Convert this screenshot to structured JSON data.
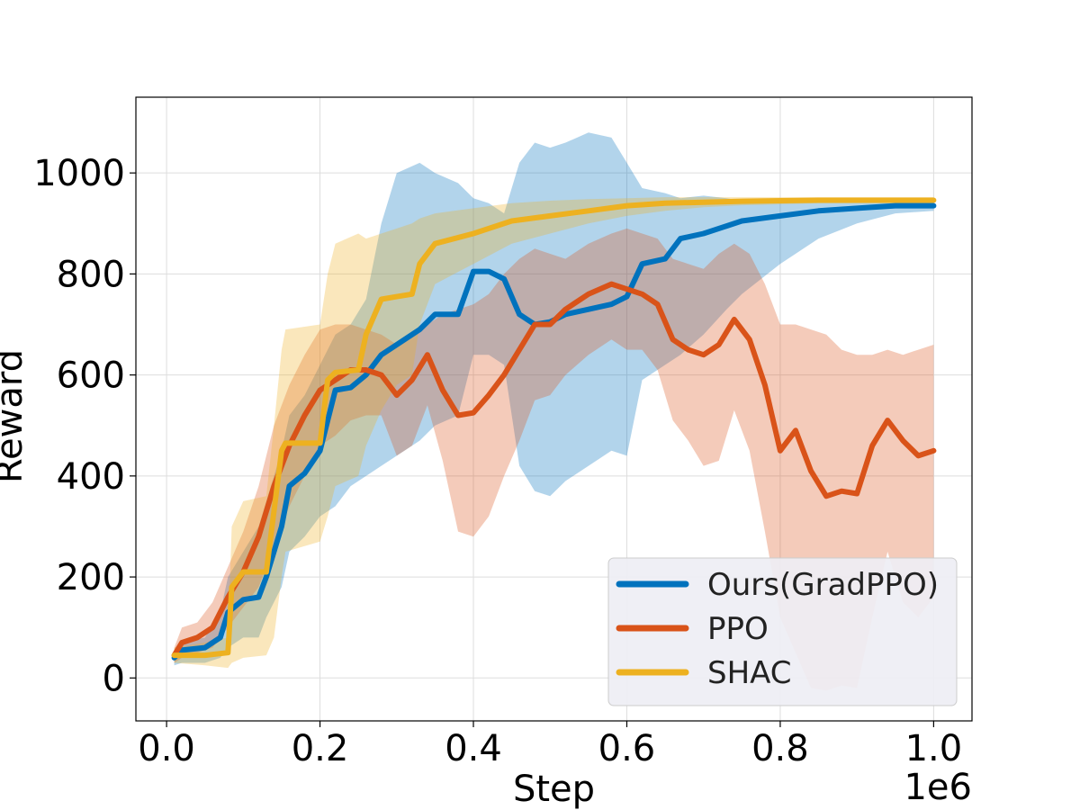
{
  "chart_data": {
    "type": "line",
    "title": "",
    "xlabel": "Step",
    "ylabel": "Reward",
    "x_offset_label": "1e6",
    "xlim": [
      -0.04,
      1.05
    ],
    "ylim": [
      -85,
      1150
    ],
    "x_ticks": [
      0.0,
      0.2,
      0.4,
      0.6,
      0.8,
      1.0
    ],
    "x_tick_labels": [
      "0.0",
      "0.2",
      "0.4",
      "0.6",
      "0.8",
      "1.0"
    ],
    "y_ticks": [
      0,
      200,
      400,
      600,
      800,
      1000
    ],
    "y_tick_labels": [
      "0",
      "200",
      "400",
      "600",
      "800",
      "1000"
    ],
    "grid": true,
    "legend_position": "lower-right",
    "series": [
      {
        "name": "Ours(GradPPO)",
        "color": "#0072BD",
        "x": [
          0.01,
          0.02,
          0.05,
          0.07,
          0.08,
          0.1,
          0.12,
          0.13,
          0.15,
          0.16,
          0.18,
          0.2,
          0.22,
          0.24,
          0.26,
          0.28,
          0.3,
          0.33,
          0.35,
          0.38,
          0.4,
          0.42,
          0.44,
          0.46,
          0.48,
          0.5,
          0.52,
          0.55,
          0.58,
          0.6,
          0.62,
          0.65,
          0.67,
          0.7,
          0.73,
          0.75,
          0.8,
          0.85,
          0.9,
          0.95,
          1.0
        ],
        "mean": [
          40,
          55,
          60,
          80,
          130,
          155,
          160,
          200,
          300,
          380,
          405,
          450,
          570,
          575,
          600,
          640,
          660,
          690,
          720,
          720,
          805,
          805,
          790,
          720,
          700,
          705,
          720,
          730,
          740,
          755,
          820,
          830,
          870,
          880,
          895,
          905,
          915,
          925,
          930,
          935,
          935
        ],
        "upper": [
          55,
          70,
          80,
          130,
          200,
          250,
          300,
          350,
          450,
          520,
          560,
          620,
          680,
          700,
          750,
          900,
          1000,
          1020,
          1000,
          980,
          950,
          940,
          920,
          1020,
          1060,
          1050,
          1060,
          1080,
          1070,
          1020,
          970,
          960,
          950,
          955,
          950,
          945,
          940,
          945,
          945,
          945,
          945
        ],
        "lower": [
          25,
          30,
          30,
          40,
          60,
          80,
          80,
          120,
          180,
          250,
          280,
          320,
          340,
          380,
          400,
          420,
          440,
          470,
          500,
          520,
          640,
          640,
          620,
          420,
          370,
          360,
          390,
          420,
          450,
          440,
          590,
          620,
          640,
          680,
          730,
          760,
          820,
          870,
          900,
          920,
          925
        ]
      },
      {
        "name": "PPO",
        "color": "#D95319",
        "x": [
          0.01,
          0.02,
          0.04,
          0.06,
          0.08,
          0.1,
          0.12,
          0.14,
          0.16,
          0.18,
          0.2,
          0.22,
          0.24,
          0.26,
          0.28,
          0.29,
          0.3,
          0.32,
          0.34,
          0.36,
          0.38,
          0.4,
          0.42,
          0.44,
          0.46,
          0.48,
          0.5,
          0.52,
          0.55,
          0.58,
          0.6,
          0.62,
          0.64,
          0.66,
          0.68,
          0.7,
          0.72,
          0.74,
          0.76,
          0.78,
          0.8,
          0.82,
          0.84,
          0.86,
          0.88,
          0.9,
          0.92,
          0.94,
          0.96,
          0.98,
          1.0
        ],
        "mean": [
          45,
          70,
          80,
          100,
          160,
          210,
          280,
          380,
          460,
          520,
          570,
          590,
          610,
          610,
          600,
          580,
          560,
          590,
          640,
          570,
          520,
          525,
          560,
          600,
          650,
          700,
          700,
          730,
          760,
          780,
          770,
          760,
          740,
          670,
          650,
          640,
          660,
          710,
          670,
          580,
          450,
          490,
          410,
          360,
          370,
          365,
          460,
          510,
          470,
          440,
          450
        ],
        "upper": [
          60,
          100,
          110,
          150,
          220,
          290,
          380,
          500,
          580,
          640,
          690,
          700,
          700,
          690,
          680,
          670,
          660,
          680,
          700,
          720,
          730,
          740,
          760,
          800,
          830,
          850,
          840,
          830,
          860,
          880,
          890,
          880,
          870,
          830,
          820,
          810,
          840,
          860,
          840,
          780,
          700,
          700,
          690,
          680,
          650,
          640,
          640,
          650,
          640,
          650,
          660
        ],
        "lower": [
          30,
          40,
          50,
          60,
          100,
          140,
          180,
          260,
          340,
          400,
          460,
          480,
          510,
          520,
          520,
          480,
          440,
          460,
          540,
          430,
          290,
          280,
          320,
          400,
          470,
          550,
          560,
          600,
          640,
          670,
          650,
          650,
          610,
          510,
          470,
          420,
          430,
          530,
          450,
          290,
          120,
          50,
          -20,
          -25,
          -15,
          -20,
          120,
          250,
          150,
          120,
          160
        ]
      },
      {
        "name": "SHAC",
        "color": "#EDB120",
        "x": [
          0.01,
          0.05,
          0.08,
          0.085,
          0.1,
          0.13,
          0.14,
          0.15,
          0.155,
          0.2,
          0.21,
          0.22,
          0.25,
          0.26,
          0.28,
          0.3,
          0.32,
          0.33,
          0.35,
          0.4,
          0.45,
          0.5,
          0.55,
          0.6,
          0.65,
          0.7,
          0.75,
          0.8,
          0.85,
          0.9,
          0.95,
          1.0
        ],
        "mean": [
          45,
          45,
          50,
          180,
          210,
          210,
          330,
          450,
          465,
          465,
          590,
          605,
          610,
          680,
          750,
          755,
          760,
          820,
          860,
          880,
          905,
          915,
          925,
          935,
          940,
          942,
          944,
          945,
          946,
          946,
          946,
          946
        ],
        "upper": [
          60,
          70,
          80,
          300,
          350,
          360,
          500,
          650,
          690,
          700,
          800,
          860,
          880,
          870,
          880,
          890,
          900,
          910,
          920,
          930,
          940,
          945,
          948,
          950,
          952,
          952,
          952,
          952,
          952,
          952,
          952,
          952
        ],
        "lower": [
          30,
          25,
          20,
          30,
          40,
          45,
          80,
          200,
          250,
          270,
          320,
          380,
          400,
          460,
          530,
          580,
          600,
          700,
          780,
          820,
          860,
          880,
          900,
          915,
          925,
          932,
          936,
          938,
          940,
          940,
          940,
          940
        ]
      }
    ]
  }
}
